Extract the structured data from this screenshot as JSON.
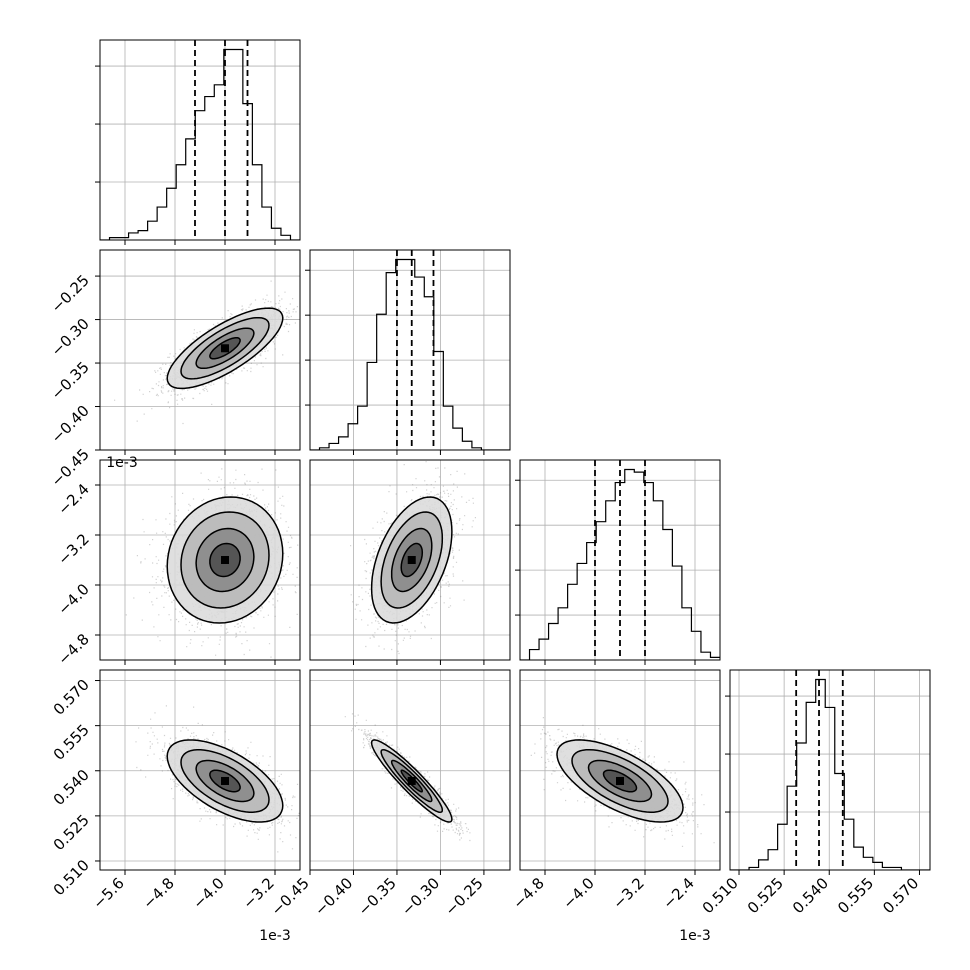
{
  "chart_data": {
    "type": "corner",
    "dimensions": 4,
    "grid": true,
    "parameters": [
      {
        "range": [
          -6.0,
          -2.8
        ],
        "ticks": [
          -5.6,
          -4.8,
          -4.0,
          -3.2
        ],
        "tick_labels": [
          "-5.6",
          "-4.8",
          "-4.0",
          "-3.2"
        ],
        "offset_label": "1e-3",
        "median": -4.0,
        "q16": -4.48,
        "q84": -3.64,
        "std": 0.44
      },
      {
        "range": [
          -0.45,
          -0.22
        ],
        "ticks": [
          -0.45,
          -0.4,
          -0.35,
          -0.3,
          -0.25
        ],
        "tick_labels": [
          "-0.45",
          "-0.40",
          "-0.35",
          "-0.30",
          "-0.25"
        ],
        "offset_label": "",
        "median": -0.333,
        "q16": -0.35,
        "q84": -0.308,
        "std": 0.022
      },
      {
        "range": [
          -5.2,
          -2.0
        ],
        "ticks": [
          -4.8,
          -4.0,
          -3.2,
          -2.4
        ],
        "tick_labels": [
          "-4.8",
          "-4.0",
          "-3.2",
          "-2.4"
        ],
        "offset_label": "1e-3",
        "median": -3.6,
        "q16": -4.0,
        "q84": -3.2,
        "std": 0.48
      },
      {
        "range": [
          0.507,
          0.5735
        ],
        "ticks": [
          0.51,
          0.525,
          0.54,
          0.555,
          0.57
        ],
        "tick_labels": [
          "0.510",
          "0.525",
          "0.540",
          "0.555",
          "0.570"
        ],
        "offset_label": "",
        "median": 0.5366,
        "q16": 0.529,
        "q84": 0.5445,
        "std": 0.0065
      }
    ],
    "histograms": [
      {
        "param": 0,
        "bins": 20,
        "y_ticks": 3,
        "counts": [
          0,
          1,
          1,
          3,
          4,
          8,
          14,
          22,
          32,
          43,
          55,
          61,
          66,
          81,
          81,
          58,
          32,
          14,
          5,
          2,
          0
        ]
      },
      {
        "param": 1,
        "bins": 20,
        "y_ticks": 4,
        "counts": [
          0,
          1,
          3,
          6,
          12,
          20,
          40,
          62,
          81,
          87,
          87,
          79,
          70,
          45,
          20,
          10,
          4,
          1,
          0,
          0,
          0
        ]
      },
      {
        "param": 2,
        "bins": 20,
        "y_ticks": 4,
        "counts": [
          0,
          4,
          8,
          14,
          20,
          29,
          37,
          45,
          53,
          61,
          68,
          73,
          72,
          68,
          61,
          50,
          36,
          20,
          11,
          3,
          1
        ]
      },
      {
        "param": 3,
        "bins": 20,
        "y_ticks": 3,
        "counts": [
          0,
          0,
          1,
          4,
          8,
          18,
          33,
          50,
          66,
          75,
          64,
          38,
          20,
          9,
          5,
          3,
          1,
          1,
          0,
          0,
          0
        ]
      }
    ],
    "pairs": [
      {
        "x": 0,
        "y": 1,
        "correlation": 0.75
      },
      {
        "x": 0,
        "y": 2,
        "correlation": 0.1
      },
      {
        "x": 1,
        "y": 2,
        "correlation": 0.45
      },
      {
        "x": 0,
        "y": 3,
        "correlation": -0.6
      },
      {
        "x": 1,
        "y": 3,
        "correlation": -0.93
      },
      {
        "x": 2,
        "y": 3,
        "correlation": -0.65
      }
    ]
  }
}
